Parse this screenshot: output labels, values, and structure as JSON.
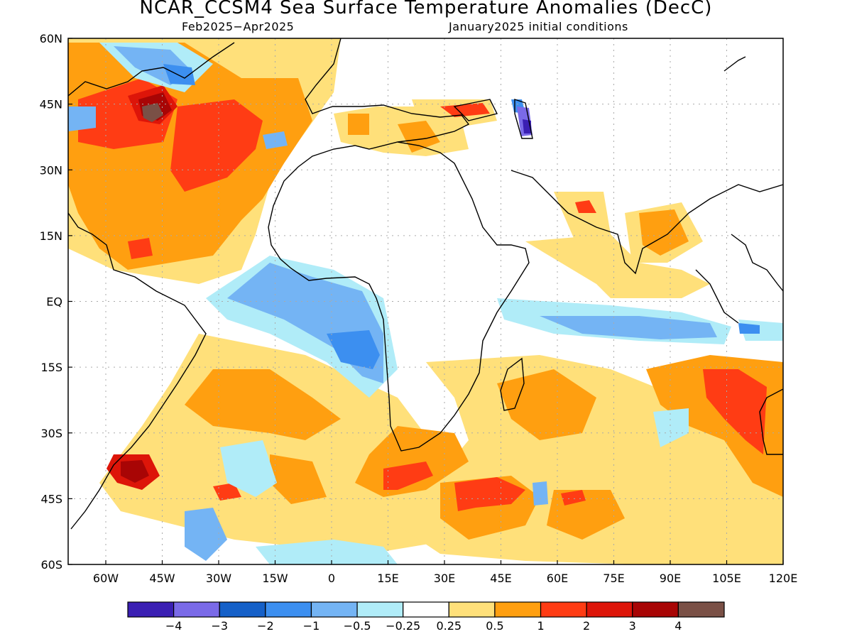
{
  "title": "NCAR_CCSM4 Sea Surface Temperature Anomalies (DecC)",
  "subtitle_left": "Feb2025−Apr2025",
  "subtitle_right": "January2025 initial conditions",
  "lat_ticks": [
    "60N",
    "45N",
    "30N",
    "15N",
    "EQ",
    "15S",
    "30S",
    "45S",
    "60S"
  ],
  "lon_ticks": [
    "60W",
    "45W",
    "30W",
    "15W",
    "0",
    "15E",
    "30E",
    "45E",
    "60E",
    "75E",
    "90E",
    "105E",
    "120E"
  ],
  "colorbar": {
    "colors": [
      "#3a1fb3",
      "#7a6ae8",
      "#1560c8",
      "#3c8ff0",
      "#74b4f4",
      "#b0ecf8",
      "#ffffff",
      "#ffe07a",
      "#ff9f10",
      "#ff3c14",
      "#dd1509",
      "#a80505",
      "#7a5046"
    ],
    "labels": [
      "−4",
      "−3",
      "−2",
      "−1",
      "−0.5",
      "−0.25",
      "0.25",
      "0.5",
      "1",
      "2",
      "3",
      "4"
    ]
  }
}
